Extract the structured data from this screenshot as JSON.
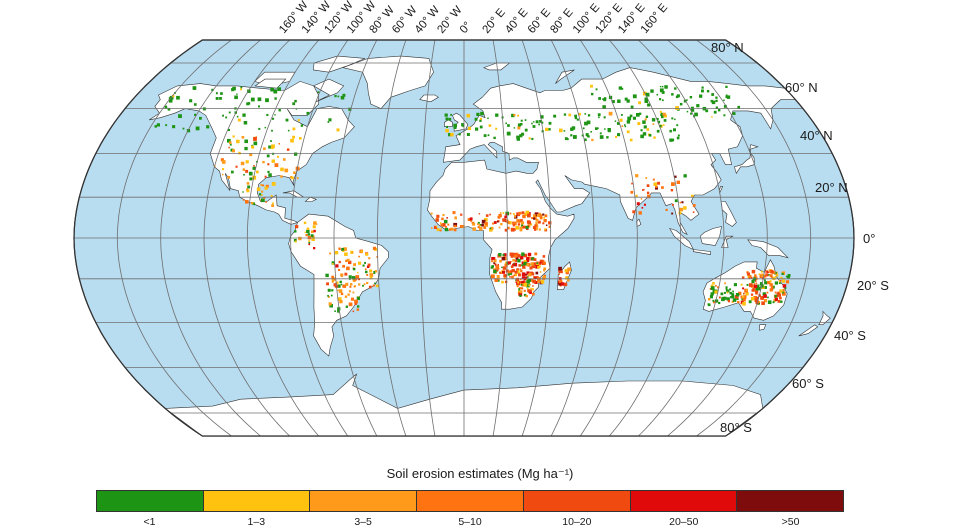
{
  "map": {
    "lon_labels": [
      "160° W",
      "140° W",
      "120° W",
      "100° W",
      "80° W",
      "60° W",
      "40° W",
      "20° W",
      "0°",
      "20° E",
      "40° E",
      "60° E",
      "80° E",
      "100° E",
      "120° E",
      "140° E",
      "160° E"
    ],
    "lat_labels": [
      "80° N",
      "60° N",
      "40° N",
      "20° N",
      "0°",
      "20° S",
      "40° S",
      "60° S",
      "80° S"
    ],
    "colors": {
      "ocean": "#b8dcf0",
      "land": "#ffffff",
      "coast": "#333333",
      "graticule": "#6f6f6f"
    }
  },
  "legend": {
    "title": "Soil erosion estimates (Mg ha⁻¹)",
    "classes": [
      {
        "label": "<1",
        "color": "#1e9415"
      },
      {
        "label": "1–3",
        "color": "#ffc20e"
      },
      {
        "label": "3–5",
        "color": "#ff9a1a"
      },
      {
        "label": "5–10",
        "color": "#ff7310"
      },
      {
        "label": "10–20",
        "color": "#f04a10"
      },
      {
        "label": "20–50",
        "color": "#e00a0a"
      },
      {
        "label": ">50",
        "color": "#7e0c0c"
      }
    ]
  }
}
